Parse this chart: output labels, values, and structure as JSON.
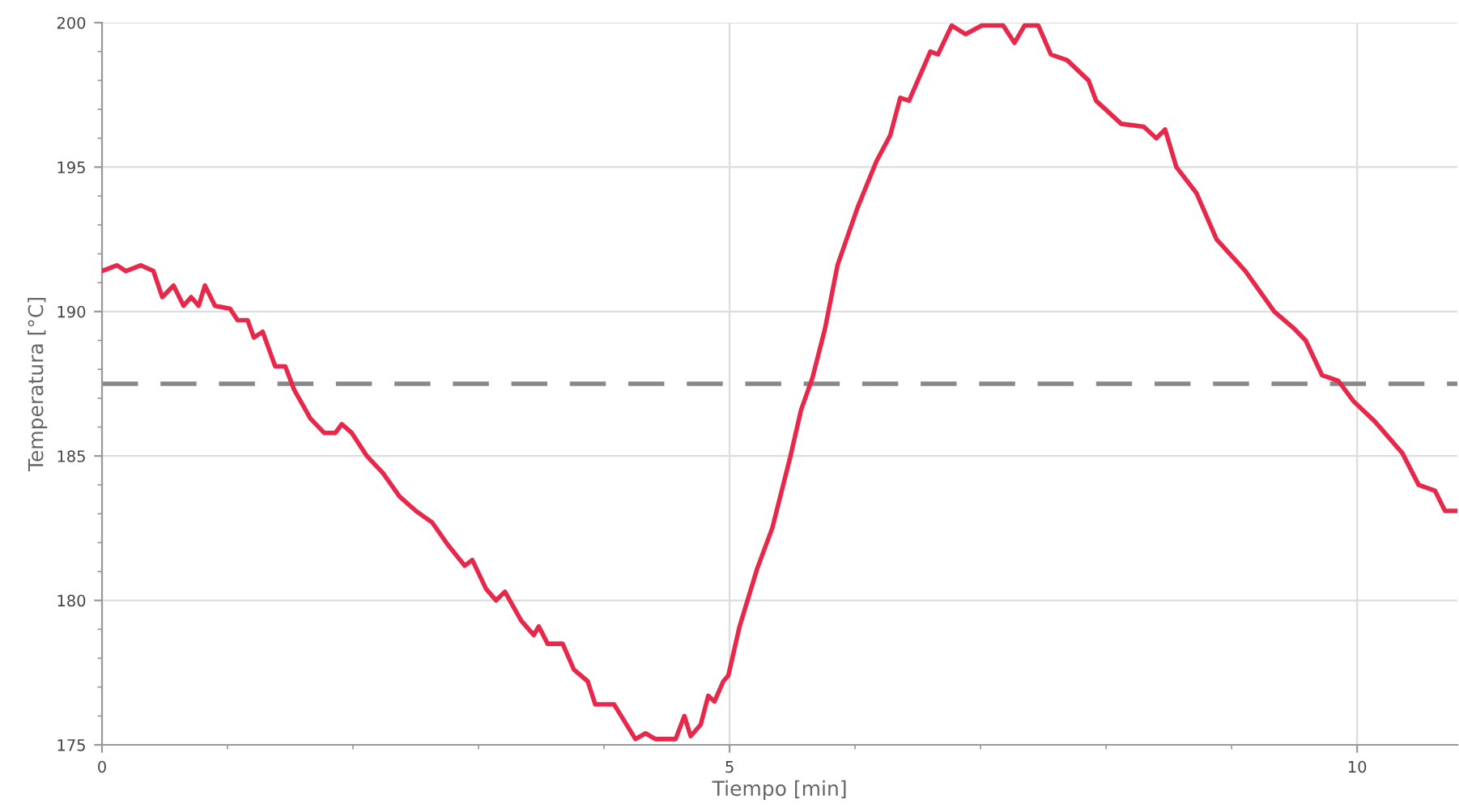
{
  "chart_data": {
    "type": "line",
    "xlabel": "Tiempo [min]",
    "ylabel": "Temperatura [°C]",
    "xlim": [
      0,
      10.8
    ],
    "ylim": [
      175,
      200
    ],
    "xticks": [
      0,
      5,
      10
    ],
    "yticks": [
      175,
      180,
      185,
      190,
      195,
      200
    ],
    "grid": true,
    "line_style": "solid",
    "marker": "none",
    "ref_lines": [
      {
        "axis": "y",
        "value": 187.5,
        "color": "#888888",
        "line_style": "dashed"
      }
    ],
    "series": [
      {
        "color": "#e8284a",
        "x": [
          0,
          0.12,
          0.19,
          0.31,
          0.41,
          0.48,
          0.57,
          0.65,
          0.71,
          0.77,
          0.82,
          0.9,
          1.02,
          1.08,
          1.16,
          1.21,
          1.28,
          1.38,
          1.46,
          1.53,
          1.66,
          1.77,
          1.86,
          1.91,
          1.99,
          2.11,
          2.24,
          2.37,
          2.5,
          2.63,
          2.76,
          2.89,
          2.95,
          3.06,
          3.14,
          3.21,
          3.34,
          3.44,
          3.48,
          3.55,
          3.67,
          3.76,
          3.87,
          3.93,
          4.08,
          4.25,
          4.33,
          4.41,
          4.57,
          4.64,
          4.69,
          4.77,
          4.83,
          4.88,
          4.95,
          4.99,
          5.08,
          5.22,
          5.34,
          5.48,
          5.57,
          5.66,
          5.76,
          5.86,
          6.02,
          6.17,
          6.28,
          6.36,
          6.43,
          6.6,
          6.66,
          6.77,
          6.88,
          7.01,
          7.18,
          7.27,
          7.35,
          7.46,
          7.56,
          7.69,
          7.86,
          7.92,
          8.12,
          8.3,
          8.4,
          8.47,
          8.56,
          8.72,
          8.88,
          9.11,
          9.34,
          9.5,
          9.59,
          9.72,
          9.85,
          9.97,
          10.14,
          10.36,
          10.49,
          10.62,
          10.7,
          10.8
        ],
        "values": [
          191.4,
          191.6,
          191.4,
          191.6,
          191.4,
          190.5,
          190.9,
          190.2,
          190.5,
          190.2,
          190.9,
          190.2,
          190.1,
          189.7,
          189.7,
          189.1,
          189.3,
          188.1,
          188.1,
          187.3,
          186.3,
          185.8,
          185.8,
          186.1,
          185.8,
          185.0,
          184.4,
          183.6,
          183.1,
          182.7,
          181.9,
          181.2,
          181.4,
          180.4,
          180.0,
          180.3,
          179.3,
          178.8,
          179.1,
          178.5,
          178.5,
          177.6,
          177.2,
          176.4,
          176.4,
          175.2,
          175.4,
          175.2,
          175.2,
          176.0,
          175.3,
          175.7,
          176.7,
          176.5,
          177.2,
          177.4,
          179.1,
          181.1,
          182.5,
          184.9,
          186.6,
          187.7,
          189.4,
          191.6,
          193.6,
          195.2,
          196.1,
          197.4,
          197.3,
          199.0,
          198.9,
          199.9,
          199.6,
          199.9,
          199.9,
          199.3,
          199.9,
          199.9,
          198.9,
          198.7,
          198.0,
          197.3,
          196.5,
          196.4,
          196.0,
          196.3,
          195.0,
          194.1,
          192.5,
          191.4,
          190.0,
          189.4,
          189.0,
          187.8,
          187.6,
          186.9,
          186.2,
          185.1,
          184.0,
          183.8,
          183.1,
          183.1
        ]
      }
    ]
  }
}
